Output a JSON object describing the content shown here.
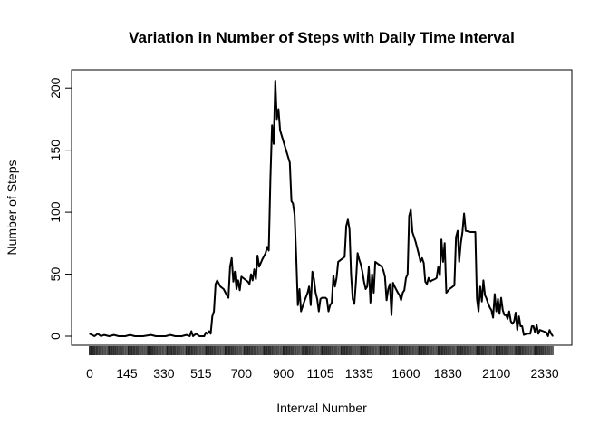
{
  "chart_data": {
    "type": "line",
    "title": "Variation in Number of Steps with Daily Time Interval",
    "xlabel": "Interval Number",
    "ylabel": "Number of Steps",
    "x_is_index": true,
    "xlim": [
      0,
      287
    ],
    "ylim": [
      0,
      206
    ],
    "y_ticks": [
      0,
      50,
      100,
      150,
      200
    ],
    "x_ticks": [
      {
        "index": 0,
        "label": "0"
      },
      {
        "index": 23,
        "label": "145"
      },
      {
        "index": 46,
        "label": "330"
      },
      {
        "index": 69,
        "label": "515"
      },
      {
        "index": 94,
        "label": "700"
      },
      {
        "index": 120,
        "label": "900"
      },
      {
        "index": 143,
        "label": "1105"
      },
      {
        "index": 167,
        "label": "1335"
      },
      {
        "index": 196,
        "label": "1600"
      },
      {
        "index": 222,
        "label": "1830"
      },
      {
        "index": 252,
        "label": "2100"
      },
      {
        "index": 282,
        "label": "2330"
      }
    ],
    "series": [
      {
        "points": [
          [
            0,
            2
          ],
          [
            3,
            0
          ],
          [
            5,
            2
          ],
          [
            7,
            0
          ],
          [
            9,
            1
          ],
          [
            12,
            0
          ],
          [
            15,
            1
          ],
          [
            18,
            0
          ],
          [
            22,
            0
          ],
          [
            25,
            1
          ],
          [
            28,
            0
          ],
          [
            33,
            0
          ],
          [
            38,
            1
          ],
          [
            41,
            0
          ],
          [
            44,
            0
          ],
          [
            47,
            0
          ],
          [
            50,
            1
          ],
          [
            53,
            0
          ],
          [
            57,
            0
          ],
          [
            60,
            1
          ],
          [
            62,
            0
          ],
          [
            63,
            4
          ],
          [
            64,
            0
          ],
          [
            66,
            2
          ],
          [
            68,
            0
          ],
          [
            71,
            0
          ],
          [
            72,
            3
          ],
          [
            73,
            2
          ],
          [
            74,
            4
          ],
          [
            75,
            2
          ],
          [
            76,
            16
          ],
          [
            77,
            20
          ],
          [
            78,
            42
          ],
          [
            79,
            45
          ],
          [
            81,
            40
          ],
          [
            83,
            38
          ],
          [
            85,
            33
          ],
          [
            86,
            31
          ],
          [
            87,
            56
          ],
          [
            88,
            63
          ],
          [
            89,
            44
          ],
          [
            90,
            52
          ],
          [
            91,
            38
          ],
          [
            92,
            45
          ],
          [
            93,
            37
          ],
          [
            94,
            48
          ],
          [
            96,
            46
          ],
          [
            98,
            44
          ],
          [
            99,
            42
          ],
          [
            100,
            50
          ],
          [
            101,
            45
          ],
          [
            102,
            54
          ],
          [
            103,
            46
          ],
          [
            104,
            65
          ],
          [
            105,
            56
          ],
          [
            107,
            62
          ],
          [
            109,
            67
          ],
          [
            110,
            72
          ],
          [
            111,
            69
          ],
          [
            112,
            127
          ],
          [
            113,
            170
          ],
          [
            114,
            155
          ],
          [
            115,
            206
          ],
          [
            116,
            175
          ],
          [
            117,
            183
          ],
          [
            118,
            166
          ],
          [
            124,
            140
          ],
          [
            125,
            109
          ],
          [
            126,
            107
          ],
          [
            127,
            98
          ],
          [
            128,
            64
          ],
          [
            129,
            25
          ],
          [
            130,
            38
          ],
          [
            131,
            20
          ],
          [
            133,
            28
          ],
          [
            135,
            35
          ],
          [
            136,
            40
          ],
          [
            137,
            25
          ],
          [
            138,
            52
          ],
          [
            139,
            46
          ],
          [
            140,
            35
          ],
          [
            141,
            30
          ],
          [
            142,
            20
          ],
          [
            143,
            30
          ],
          [
            144,
            31
          ],
          [
            146,
            31
          ],
          [
            147,
            30
          ],
          [
            148,
            20
          ],
          [
            149,
            25
          ],
          [
            150,
            27
          ],
          [
            151,
            49
          ],
          [
            152,
            40
          ],
          [
            153,
            47
          ],
          [
            154,
            60
          ],
          [
            158,
            64
          ],
          [
            159,
            89
          ],
          [
            160,
            94
          ],
          [
            161,
            86
          ],
          [
            162,
            50
          ],
          [
            163,
            30
          ],
          [
            164,
            26
          ],
          [
            165,
            44
          ],
          [
            166,
            67
          ],
          [
            167,
            62
          ],
          [
            168,
            58
          ],
          [
            169,
            52
          ],
          [
            170,
            44
          ],
          [
            171,
            38
          ],
          [
            172,
            40
          ],
          [
            173,
            56
          ],
          [
            174,
            27
          ],
          [
            175,
            50
          ],
          [
            176,
            35
          ],
          [
            177,
            60
          ],
          [
            179,
            58
          ],
          [
            181,
            56
          ],
          [
            182,
            53
          ],
          [
            183,
            48
          ],
          [
            184,
            29
          ],
          [
            185,
            38
          ],
          [
            186,
            42
          ],
          [
            187,
            17
          ],
          [
            188,
            43
          ],
          [
            189,
            40
          ],
          [
            191,
            35
          ],
          [
            192,
            33
          ],
          [
            193,
            29
          ],
          [
            194,
            35
          ],
          [
            195,
            37
          ],
          [
            196,
            47
          ],
          [
            197,
            50
          ],
          [
            198,
            97
          ],
          [
            199,
            102
          ],
          [
            200,
            84
          ],
          [
            202,
            76
          ],
          [
            204,
            66
          ],
          [
            205,
            60
          ],
          [
            206,
            63
          ],
          [
            207,
            59
          ],
          [
            208,
            44
          ],
          [
            209,
            42
          ],
          [
            210,
            47
          ],
          [
            211,
            44
          ],
          [
            212,
            45
          ],
          [
            214,
            46
          ],
          [
            215,
            47
          ],
          [
            216,
            56
          ],
          [
            217,
            49
          ],
          [
            218,
            78
          ],
          [
            219,
            60
          ],
          [
            220,
            75
          ],
          [
            221,
            35
          ],
          [
            223,
            38
          ],
          [
            226,
            41
          ],
          [
            227,
            80
          ],
          [
            228,
            85
          ],
          [
            229,
            60
          ],
          [
            230,
            75
          ],
          [
            231,
            84
          ],
          [
            232,
            99
          ],
          [
            233,
            85
          ],
          [
            236,
            84
          ],
          [
            239,
            84
          ],
          [
            240,
            30
          ],
          [
            241,
            20
          ],
          [
            242,
            40
          ],
          [
            243,
            28
          ],
          [
            244,
            45
          ],
          [
            245,
            33
          ],
          [
            246,
            30
          ],
          [
            247,
            26
          ],
          [
            248,
            23
          ],
          [
            249,
            21
          ],
          [
            250,
            15
          ],
          [
            251,
            34
          ],
          [
            252,
            20
          ],
          [
            253,
            30
          ],
          [
            254,
            18
          ],
          [
            255,
            31
          ],
          [
            256,
            21
          ],
          [
            257,
            17
          ],
          [
            258,
            17
          ],
          [
            259,
            14
          ],
          [
            260,
            20
          ],
          [
            261,
            12
          ],
          [
            262,
            10
          ],
          [
            263,
            12
          ],
          [
            264,
            19
          ],
          [
            265,
            5
          ],
          [
            266,
            16
          ],
          [
            267,
            8
          ],
          [
            268,
            8
          ],
          [
            269,
            1
          ],
          [
            271,
            2
          ],
          [
            273,
            2
          ],
          [
            274,
            8
          ],
          [
            275,
            8
          ],
          [
            276,
            3
          ],
          [
            277,
            9
          ],
          [
            278,
            2
          ],
          [
            279,
            5
          ],
          [
            281,
            4
          ],
          [
            283,
            3
          ],
          [
            284,
            0
          ],
          [
            285,
            5
          ],
          [
            286,
            2
          ],
          [
            287,
            0
          ]
        ]
      }
    ]
  },
  "style": {
    "line_color": "#000000",
    "axis_color": "#000000",
    "rug_tick_color": "#444444"
  }
}
